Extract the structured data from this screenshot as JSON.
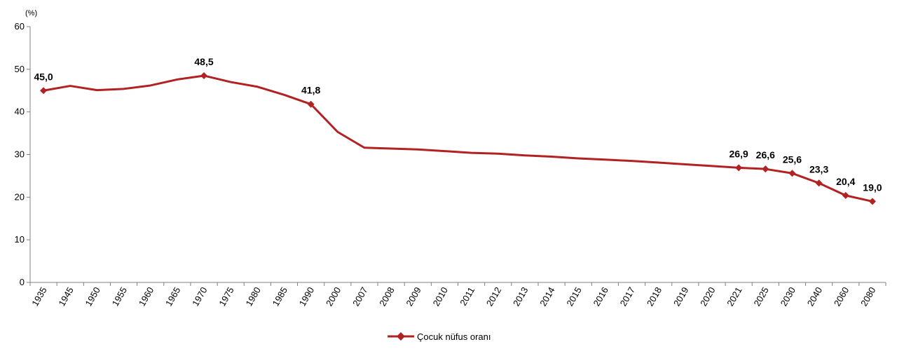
{
  "chart_data": {
    "type": "line",
    "unit_label": "(%)",
    "categories": [
      "1935",
      "1945",
      "1950",
      "1955",
      "1960",
      "1965",
      "1970",
      "1975",
      "1980",
      "1985",
      "1990",
      "2000",
      "2007",
      "2008",
      "2009",
      "2010",
      "2011",
      "2012",
      "2013",
      "2014",
      "2015",
      "2016",
      "2017",
      "2018",
      "2019",
      "2020",
      "2021",
      "2025",
      "2030",
      "2040",
      "2060",
      "2080"
    ],
    "series": [
      {
        "name": "Çocuk nüfus oranı",
        "color": "#B22222",
        "marker": "diamond",
        "values": [
          45.0,
          46.1,
          45.1,
          45.4,
          46.2,
          47.6,
          48.5,
          47.0,
          45.9,
          44.0,
          41.8,
          35.3,
          31.6,
          31.4,
          31.2,
          30.8,
          30.4,
          30.2,
          29.8,
          29.5,
          29.1,
          28.8,
          28.5,
          28.1,
          27.7,
          27.3,
          26.9,
          26.6,
          25.6,
          23.3,
          20.4,
          19.0
        ]
      }
    ],
    "data_labels": [
      {
        "index": 0,
        "text": "45,0"
      },
      {
        "index": 6,
        "text": "48,5"
      },
      {
        "index": 10,
        "text": "41,8"
      },
      {
        "index": 26,
        "text": "26,9"
      },
      {
        "index": 27,
        "text": "26,6"
      },
      {
        "index": 28,
        "text": "25,6"
      },
      {
        "index": 29,
        "text": "23,3"
      },
      {
        "index": 30,
        "text": "20,4"
      },
      {
        "index": 31,
        "text": "19,0"
      }
    ],
    "marker_indices": [
      0,
      6,
      10,
      26,
      27,
      28,
      29,
      30,
      31
    ],
    "ylim": [
      0,
      60
    ],
    "yticks": [
      0,
      10,
      20,
      30,
      40,
      50,
      60
    ],
    "grid": false,
    "legend_position": "bottom"
  }
}
